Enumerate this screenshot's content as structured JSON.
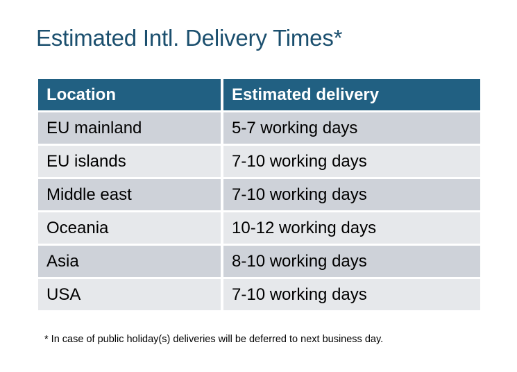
{
  "title": "Estimated Intl. Delivery Times*",
  "table": {
    "headers": [
      "Location",
      "Estimated delivery"
    ],
    "rows": [
      [
        "EU mainland",
        "5-7 working days"
      ],
      [
        "EU islands",
        "7-10 working days"
      ],
      [
        "Middle east",
        "7-10 working days"
      ],
      [
        "Oceania",
        "10-12 working days"
      ],
      [
        "Asia",
        "8-10 working days"
      ],
      [
        "USA",
        "7-10 working days"
      ]
    ]
  },
  "footnote": "* In case of public holiday(s) deliveries will be deferred to next business day.",
  "colors": {
    "title": "#1b4f6e",
    "header_bg": "#216082",
    "row_odd": "#ced2d9",
    "row_even": "#e6e8eb"
  }
}
